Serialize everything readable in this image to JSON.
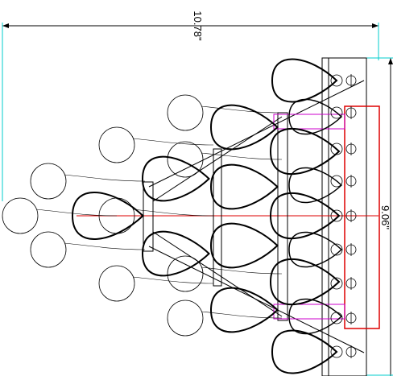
{
  "dimensions": {
    "width": "10.78\"",
    "height": "9.06\""
  }
}
